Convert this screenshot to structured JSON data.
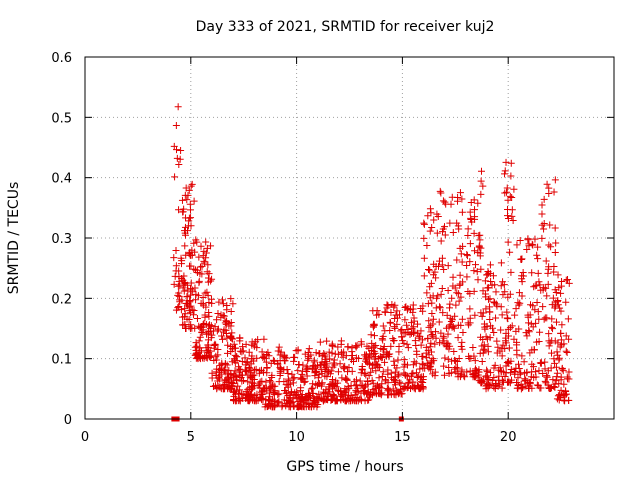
{
  "chart_data": {
    "type": "scatter",
    "title": "Day 333 of 2021, SRMTID for receiver kuj2",
    "xlabel": "GPS time / hours",
    "ylabel": "SRMTID / TECUs",
    "xlim": [
      0,
      25
    ],
    "ylim": [
      0,
      0.6
    ],
    "xticks": [
      0,
      5,
      10,
      15,
      20
    ],
    "xtick_labels": [
      "0",
      "5",
      "10",
      "15",
      "20"
    ],
    "yticks": [
      0,
      0.1,
      0.2,
      0.3,
      0.4,
      0.5,
      0.6
    ],
    "ytick_labels": [
      "0",
      "0.1",
      "0.2",
      "0.3",
      "0.4",
      "0.5",
      "0.6"
    ],
    "grid": true,
    "marker": "+",
    "color": "#e00000",
    "series": [
      {
        "name": "SRMTID",
        "segments": [
          {
            "t0": 4.15,
            "t1": 4.55,
            "n": 30,
            "lo": 0.18,
            "hi": 0.52
          },
          {
            "t0": 4.55,
            "t1": 5.2,
            "n": 90,
            "lo": 0.15,
            "hi": 0.39
          },
          {
            "t0": 5.2,
            "t1": 6.0,
            "n": 110,
            "lo": 0.1,
            "hi": 0.3
          },
          {
            "t0": 6.0,
            "t1": 7.0,
            "n": 120,
            "lo": 0.05,
            "hi": 0.2
          },
          {
            "t0": 7.0,
            "t1": 8.5,
            "n": 160,
            "lo": 0.03,
            "hi": 0.14
          },
          {
            "t0": 8.5,
            "t1": 11.0,
            "n": 240,
            "lo": 0.02,
            "hi": 0.12
          },
          {
            "t0": 11.0,
            "t1": 13.5,
            "n": 220,
            "lo": 0.03,
            "hi": 0.13
          },
          {
            "t0": 13.5,
            "t1": 15.0,
            "n": 150,
            "lo": 0.04,
            "hi": 0.19
          },
          {
            "t0": 15.0,
            "t1": 16.0,
            "n": 100,
            "lo": 0.05,
            "hi": 0.19
          },
          {
            "t0": 16.0,
            "t1": 16.4,
            "n": 45,
            "lo": 0.08,
            "hi": 0.4
          },
          {
            "t0": 16.4,
            "t1": 18.5,
            "n": 190,
            "lo": 0.07,
            "hi": 0.38
          },
          {
            "t0": 18.5,
            "t1": 18.9,
            "n": 45,
            "lo": 0.06,
            "hi": 0.43
          },
          {
            "t0": 18.9,
            "t1": 19.8,
            "n": 90,
            "lo": 0.05,
            "hi": 0.26
          },
          {
            "t0": 19.8,
            "t1": 20.3,
            "n": 55,
            "lo": 0.06,
            "hi": 0.45
          },
          {
            "t0": 20.3,
            "t1": 21.5,
            "n": 110,
            "lo": 0.05,
            "hi": 0.3
          },
          {
            "t0": 21.5,
            "t1": 22.3,
            "n": 80,
            "lo": 0.05,
            "hi": 0.4
          },
          {
            "t0": 22.3,
            "t1": 22.9,
            "n": 60,
            "lo": 0.03,
            "hi": 0.25
          }
        ],
        "zero_points": [
          4.2,
          4.35,
          14.95
        ]
      }
    ]
  }
}
